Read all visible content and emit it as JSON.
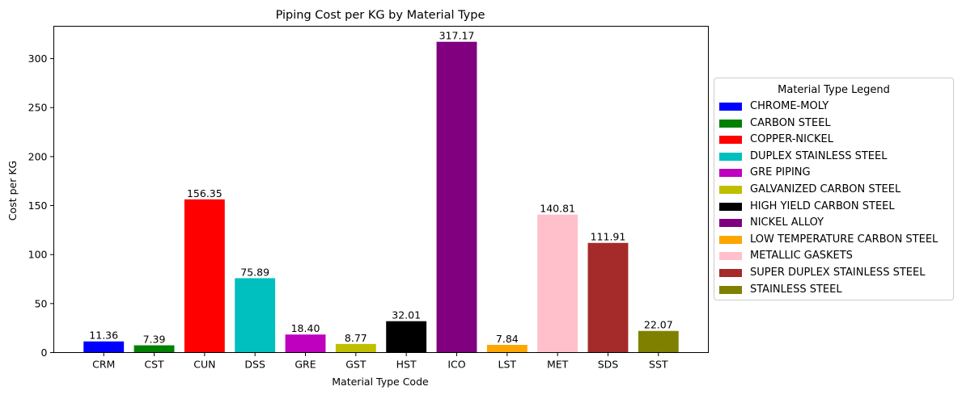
{
  "chart_data": {
    "type": "bar",
    "title": "Piping Cost per KG by Material Type",
    "xlabel": "Material Type Code",
    "ylabel": "Cost per KG",
    "categories": [
      "CRM",
      "CST",
      "CUN",
      "DSS",
      "GRE",
      "GST",
      "HST",
      "ICO",
      "LST",
      "MET",
      "SDS",
      "SST"
    ],
    "values": [
      11.36,
      7.39,
      156.35,
      75.89,
      18.4,
      8.77,
      32.01,
      317.17,
      7.84,
      140.81,
      111.91,
      22.07
    ],
    "value_labels": [
      "11.36",
      "7.39",
      "156.35",
      "75.89",
      "18.40",
      "8.77",
      "32.01",
      "317.17",
      "7.84",
      "140.81",
      "111.91",
      "22.07"
    ],
    "colors": [
      "#0000ff",
      "#008000",
      "#ff0000",
      "#00bfbf",
      "#bf00bf",
      "#bfbf00",
      "#000000",
      "#800080",
      "#ffa500",
      "#ffc0cb",
      "#a52a2a",
      "#808000"
    ],
    "yticks": [
      0,
      50,
      100,
      150,
      200,
      250,
      300
    ],
    "ylim": [
      0,
      333.03
    ],
    "grid": false,
    "legend": {
      "title": "Material Type Legend",
      "placement": "center-right-outside",
      "entries": [
        "CHROME-MOLY",
        "CARBON STEEL",
        "COPPER-NICKEL",
        "DUPLEX STAINLESS STEEL",
        "GRE PIPING",
        "GALVANIZED CARBON STEEL",
        "HIGH YIELD CARBON STEEL",
        "NICKEL ALLOY",
        "LOW TEMPERATURE CARBON STEEL",
        "METALLIC GASKETS",
        "SUPER DUPLEX STAINLESS STEEL",
        "STAINLESS STEEL"
      ]
    }
  }
}
